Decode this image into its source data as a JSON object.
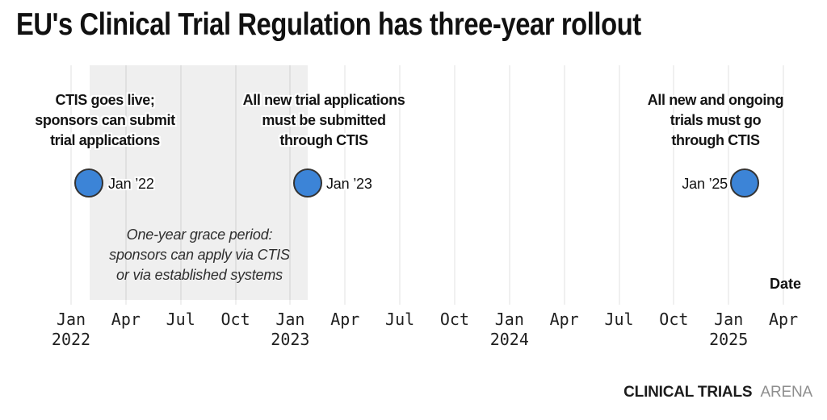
{
  "title": "EU's Clinical Trial Regulation has three-year rollout",
  "axis": {
    "label": "Date",
    "ticks": [
      {
        "month": "Jan",
        "year": "2022"
      },
      {
        "month": "Apr",
        "year": ""
      },
      {
        "month": "Jul",
        "year": ""
      },
      {
        "month": "Oct",
        "year": ""
      },
      {
        "month": "Jan",
        "year": "2023"
      },
      {
        "month": "Apr",
        "year": ""
      },
      {
        "month": "Jul",
        "year": ""
      },
      {
        "month": "Oct",
        "year": ""
      },
      {
        "month": "Jan",
        "year": "2024"
      },
      {
        "month": "Apr",
        "year": ""
      },
      {
        "month": "Jul",
        "year": ""
      },
      {
        "month": "Oct",
        "year": ""
      },
      {
        "month": "Jan",
        "year": "2025"
      },
      {
        "month": "Apr",
        "year": ""
      }
    ]
  },
  "events": [
    {
      "lines": [
        "CTIS goes live;",
        "sponsors can submit",
        "trial applications"
      ],
      "date_label": "Jan ’22"
    },
    {
      "lines": [
        "All new trial applications",
        "must be submitted",
        "through CTIS"
      ],
      "date_label": "Jan ’23"
    },
    {
      "lines": [
        "All new and ongoing",
        "trials must go",
        "through CTIS"
      ],
      "date_label": "Jan ’25"
    }
  ],
  "grace": {
    "lines": [
      "One-year grace period:",
      "sponsors can apply via CTIS",
      "or via established systems"
    ]
  },
  "footer": {
    "brand_bold": "CLINICAL TRIALS",
    "brand_light": "ARENA"
  },
  "colors": {
    "marker_fill": "#3c84d7",
    "marker_border": "#333333",
    "grace_bg": "#efefef",
    "gridline": "rgba(0,0,0,0.06)"
  },
  "chart_data": {
    "type": "scatter",
    "title": "EU's Clinical Trial Regulation has three-year rollout",
    "xlabel": "Date",
    "ylabel": "",
    "x_range": [
      "Jan 2022",
      "Apr 2025"
    ],
    "x_ticks": [
      "Jan 2022",
      "Apr",
      "Jul",
      "Oct",
      "Jan 2023",
      "Apr",
      "Jul",
      "Oct",
      "Jan 2024",
      "Apr",
      "Jul",
      "Oct",
      "Jan 2025",
      "Apr"
    ],
    "grid": "vertical quarterly gridlines",
    "legend_position": "none",
    "points": [
      {
        "x": "Jan 2022",
        "label": "CTIS goes live; sponsors can submit trial applications"
      },
      {
        "x": "Jan 2023",
        "label": "All new trial applications must be submitted through CTIS"
      },
      {
        "x": "Jan 2025",
        "label": "All new and ongoing trials must go through CTIS"
      }
    ],
    "shaded_region": {
      "from": "Jan 2022",
      "to": "Jan 2023",
      "label": "One-year grace period: sponsors can apply via CTIS or via established systems"
    },
    "source_brand": "CLINICAL TRIALS ARENA"
  }
}
